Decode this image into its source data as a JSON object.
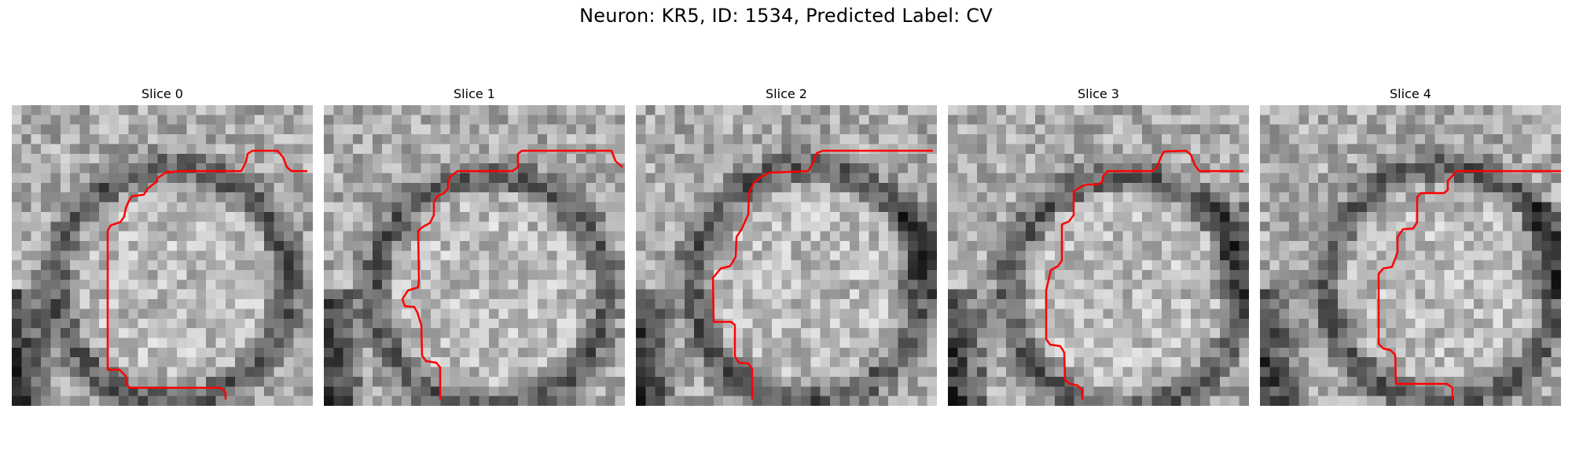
{
  "title": "Neuron: KR5, ID: 1534, Predicted Label: CV",
  "contour_color": "#ff0000",
  "slices": [
    {
      "label": "Slice 0"
    },
    {
      "label": "Slice 1"
    },
    {
      "label": "Slice 2"
    },
    {
      "label": "Slice 3"
    },
    {
      "label": "Slice 4"
    }
  ]
}
